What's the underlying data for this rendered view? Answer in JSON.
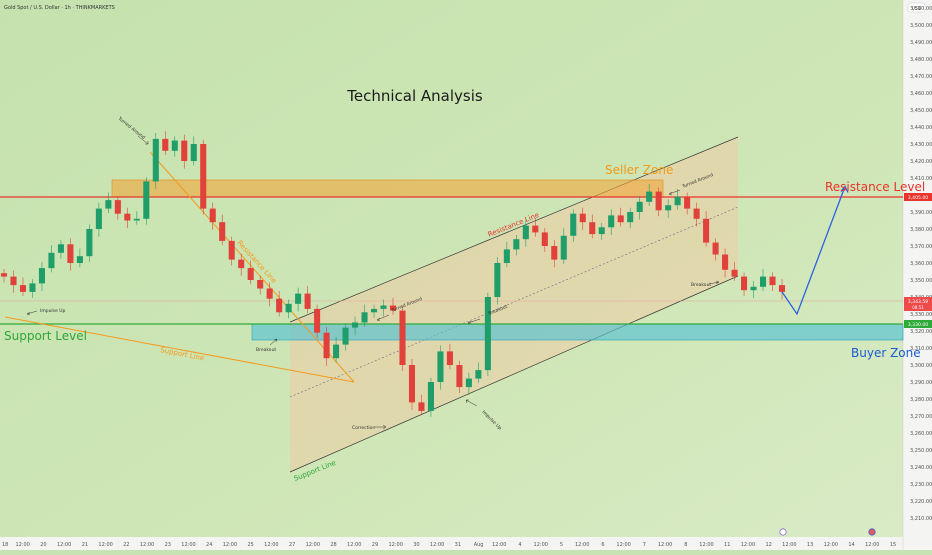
{
  "header": {
    "symbol_title": "Gold Spot / U.S. Dollar · 1h · THINKMARKETS"
  },
  "currency_badge": "USD",
  "title": "Technical Analysis",
  "chart_data": {
    "type": "line",
    "price_axis": {
      "range": [
        3205,
        3515
      ],
      "ticks": [
        "3,510.00",
        "3,500.00",
        "3,490.00",
        "3,480.00",
        "3,470.00",
        "3,460.00",
        "3,450.00",
        "3,440.00",
        "3,430.00",
        "3,420.00",
        "3,410.00",
        "3,400.00",
        "3,390.00",
        "3,380.00",
        "3,370.00",
        "3,360.00",
        "3,350.00",
        "3,340.00",
        "3,330.00",
        "3,320.00",
        "3,310.00",
        "3,300.00",
        "3,290.00",
        "3,280.00",
        "3,270.00",
        "3,260.00",
        "3,250.00",
        "3,240.00",
        "3,230.00",
        "3,220.00",
        "3,210.00"
      ],
      "tick_values": [
        3510,
        3500,
        3490,
        3480,
        3470,
        3460,
        3450,
        3440,
        3430,
        3420,
        3410,
        3400,
        3390,
        3380,
        3370,
        3360,
        3350,
        3340,
        3330,
        3320,
        3310,
        3300,
        3290,
        3280,
        3270,
        3260,
        3250,
        3240,
        3230,
        3220,
        3210
      ]
    },
    "time_axis": {
      "ticks": [
        "18",
        "12:00",
        "20",
        "12:00",
        "21",
        "12:00",
        "22",
        "12:00",
        "23",
        "12:00",
        "24",
        "12:00",
        "25",
        "12:00",
        "27",
        "12:00",
        "28",
        "12:00",
        "29",
        "12:00",
        "30",
        "12:00",
        "31",
        "Aug",
        "12:00",
        "4",
        "12:00",
        "5",
        "12:00",
        "6",
        "12:00",
        "7",
        "12:00",
        "8",
        "12:00",
        "11",
        "12:00",
        "12",
        "12:00",
        "13",
        "12:00",
        "14",
        "12:00",
        "15"
      ]
    },
    "price_tags": {
      "resistance": "3,405.00",
      "current": "3,343.59",
      "current_sub": "08:51",
      "support": "3,330.00"
    },
    "levels": {
      "resistance_price": 3405,
      "support_price": 3330,
      "seller_zone": [
        3400,
        3414
      ],
      "buyer_zone": [
        3320,
        3330
      ]
    },
    "series": [
      {
        "values": [
          3352,
          3347,
          3343,
          3348,
          3357,
          3366,
          3371,
          3360,
          3364,
          3380,
          3392,
          3397,
          3389,
          3385,
          3386,
          3408,
          3433,
          3426,
          3432,
          3420,
          3430,
          3392,
          3384,
          3373,
          3362,
          3357,
          3350,
          3345,
          3339,
          3331,
          3336,
          3342,
          3333,
          3319,
          3304,
          3312,
          3322,
          3325,
          3331,
          3333,
          3335,
          3332,
          3300,
          3278,
          3273,
          3290,
          3308,
          3300,
          3287,
          3292,
          3297,
          3340,
          3360,
          3368,
          3374,
          3382,
          3378,
          3370,
          3362,
          3376,
          3389,
          3384,
          3377,
          3381,
          3388,
          3384,
          3390,
          3396,
          3402,
          3391,
          3394,
          3399,
          3392,
          3386,
          3372,
          3365,
          3356,
          3352,
          3344,
          3346,
          3352,
          3347,
          3343
        ]
      }
    ],
    "projection": [
      {
        "x": 0,
        "y": 3343
      },
      {
        "x": 1,
        "y": 3330
      },
      {
        "x": 2,
        "y": 3405
      }
    ],
    "annotations": {
      "seller_zone": "Seller Zone",
      "resistance_level": "Resistance Level",
      "support_level": "Support Level",
      "buyer_zone": "Buyer Zone",
      "resistance_line_left": "Resistance Line",
      "support_line_left": "Support Line",
      "resistance_line_channel": "Resistance Line",
      "support_line_channel": "Support Line",
      "turned_around_1": "Turned Around",
      "turned_around_2": "Turned Around",
      "turned_around_3": "Turned Around",
      "impulse_up_1": "Impulse Up",
      "impulse_up_2": "Impulse Up",
      "breakout_1": "Breakout",
      "breakout_2": "Breakout",
      "breakout_3": "Breakout",
      "correction": "Correction"
    }
  }
}
